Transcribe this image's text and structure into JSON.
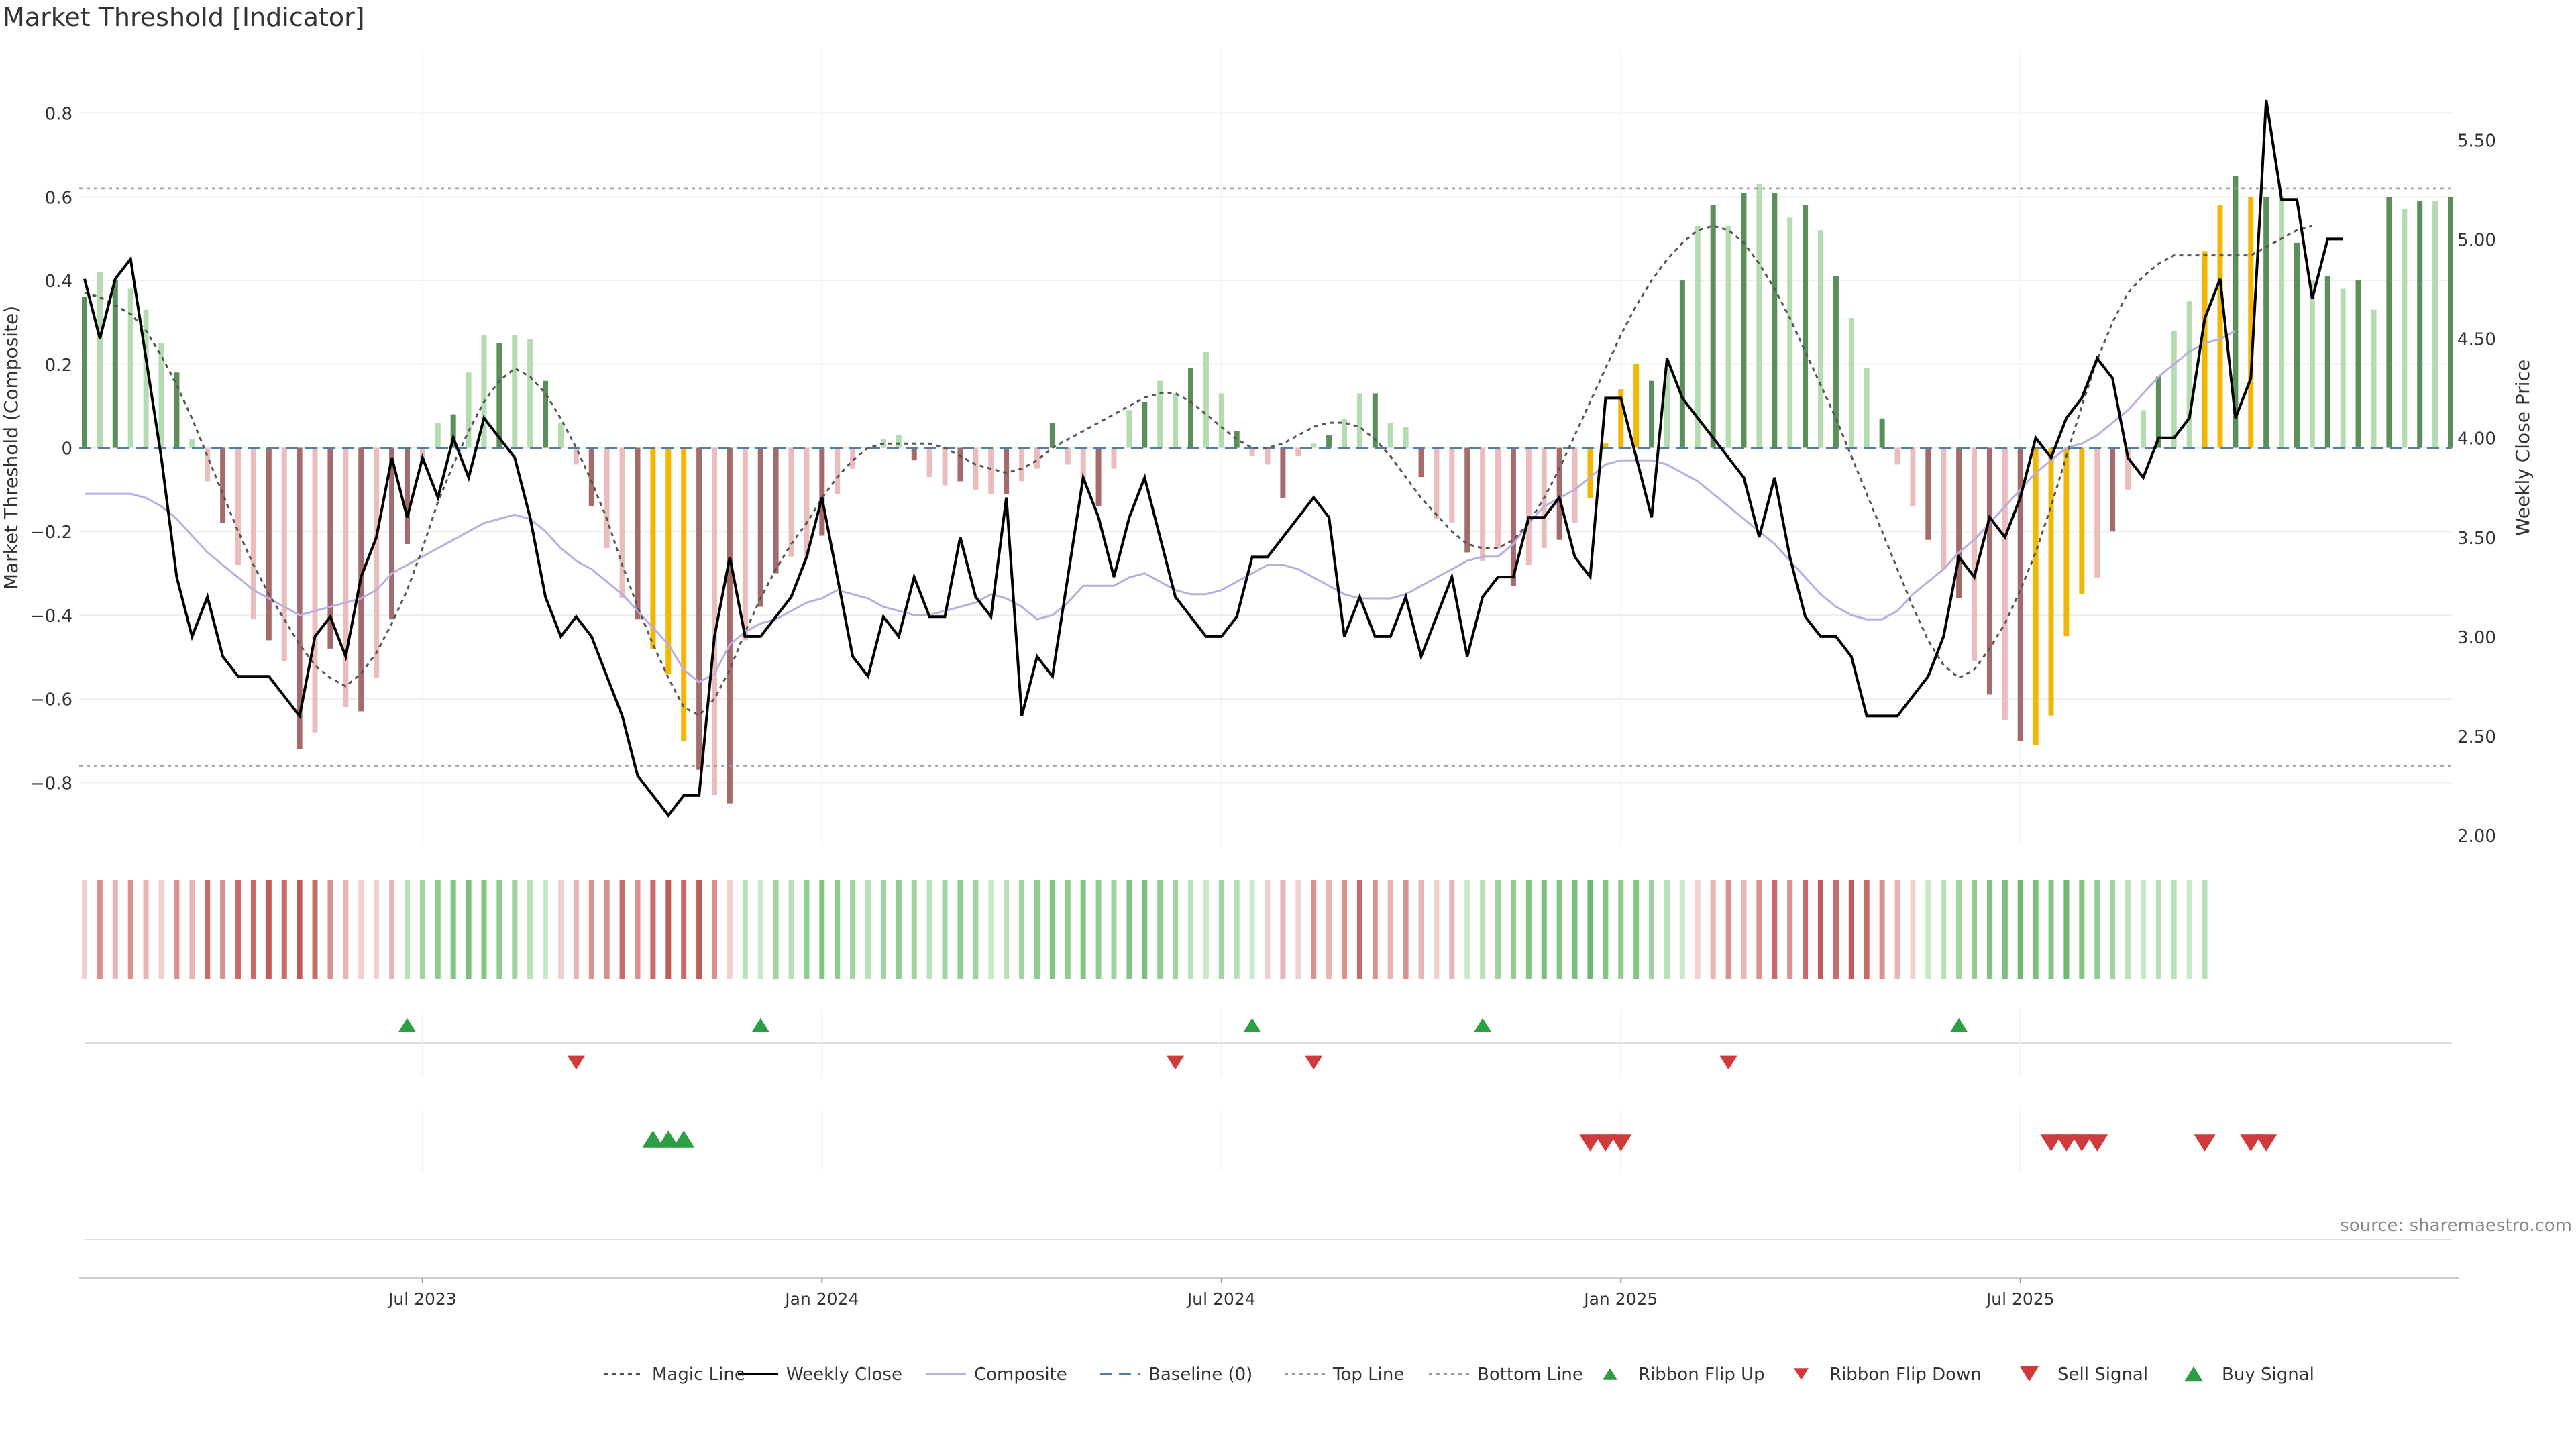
{
  "title": "Market Threshold [Indicator]",
  "source": "source: sharemaestro.com",
  "chart_data": {
    "type": "bar",
    "title": "Market Threshold [Indicator]",
    "ylabel": "Market Threshold (Composite)",
    "y2label": "Weekly Close Price",
    "ylim": [
      -0.95,
      0.95
    ],
    "y2lim": [
      1.95,
      5.95
    ],
    "yticks": [
      "0.8",
      "0.6",
      "0.4",
      "0.2",
      "0",
      "−0.2",
      "−0.4",
      "−0.6",
      "−0.8"
    ],
    "yticks_values": [
      0.8,
      0.6,
      0.4,
      0.2,
      0,
      -0.2,
      -0.4,
      -0.6,
      -0.8
    ],
    "y2ticks": [
      "5.50",
      "5.00",
      "4.50",
      "4.00",
      "3.50",
      "3.00",
      "2.50",
      "2.00"
    ],
    "y2ticks_values": [
      5.5,
      5.0,
      4.5,
      4.0,
      3.5,
      3.0,
      2.5,
      2.0
    ],
    "xticks": [
      "Jul 2023",
      "Jan 2024",
      "Jul 2024",
      "Jan 2025",
      "Jul 2025"
    ],
    "xticks_weeks": [
      22,
      48,
      74,
      100,
      126
    ],
    "top_line": 0.62,
    "bottom_line": -0.76,
    "colors": {
      "bull_strong": "#5a8f5a",
      "bull_light": "#b5dbb0",
      "bear_strong": "#a56b6b",
      "bear_light": "#ebbcbc",
      "extreme": "#f2b705",
      "composite": "#b8aee0",
      "magic": "#555555",
      "close": "#000000",
      "baseline": "#4f7fa6",
      "ribbon_green": "#6ab96f",
      "ribbon_red": "#c05a5a",
      "up_marker": "#2e9e44",
      "down_marker": "#d03a3a"
    },
    "composite_bars": [
      0.36,
      0.42,
      0.4,
      0.38,
      0.33,
      0.25,
      0.18,
      0.02,
      -0.08,
      -0.18,
      -0.28,
      -0.41,
      -0.46,
      -0.51,
      -0.72,
      -0.68,
      -0.48,
      -0.62,
      -0.63,
      -0.55,
      -0.41,
      -0.23,
      -0.04,
      0.06,
      0.08,
      0.18,
      0.27,
      0.25,
      0.27,
      0.26,
      0.16,
      0.06,
      -0.04,
      -0.14,
      -0.24,
      -0.36,
      -0.41,
      -0.48,
      -0.54,
      -0.7,
      -0.77,
      -0.83,
      -0.85,
      -0.46,
      -0.38,
      -0.3,
      -0.26,
      -0.26,
      -0.21,
      -0.11,
      -0.05,
      0.0,
      0.02,
      0.03,
      -0.03,
      -0.07,
      -0.09,
      -0.08,
      -0.1,
      -0.11,
      -0.11,
      -0.08,
      -0.05,
      0.06,
      -0.04,
      -0.09,
      -0.14,
      -0.05,
      0.09,
      0.11,
      0.16,
      0.13,
      0.19,
      0.23,
      0.13,
      0.04,
      -0.02,
      -0.04,
      -0.12,
      -0.02,
      0.01,
      0.03,
      0.07,
      0.13,
      0.13,
      0.06,
      0.05,
      -0.07,
      -0.17,
      -0.18,
      -0.25,
      -0.27,
      -0.24,
      -0.33,
      -0.28,
      -0.24,
      -0.22,
      -0.18,
      -0.12,
      0.01,
      0.14,
      0.2,
      0.16,
      0.19,
      0.4,
      0.53,
      0.58,
      0.53,
      0.61,
      0.63,
      0.61,
      0.55,
      0.58,
      0.52,
      0.41,
      0.31,
      0.19,
      0.07,
      -0.04,
      -0.14,
      -0.22,
      -0.29,
      -0.36,
      -0.51,
      -0.59,
      -0.65,
      -0.7,
      -0.71,
      -0.64,
      -0.45,
      -0.35,
      -0.31,
      -0.2,
      -0.1,
      0.09,
      0.17,
      0.28,
      0.35,
      0.47,
      0.58,
      0.65,
      0.6,
      0.6,
      0.6,
      0.49,
      0.4,
      0.41,
      0.38,
      0.4,
      0.33,
      0.6,
      0.57,
      0.59,
      0.59,
      0.6
    ],
    "extreme_weeks": [
      37,
      38,
      39,
      98,
      99,
      100,
      101,
      127,
      128,
      129,
      130,
      138,
      139,
      141
    ],
    "weekly_close": [
      4.8,
      4.5,
      4.8,
      4.9,
      4.4,
      3.9,
      3.3,
      3.0,
      3.2,
      2.9,
      2.8,
      2.8,
      2.8,
      2.7,
      2.6,
      3.0,
      3.1,
      2.9,
      3.3,
      3.5,
      3.9,
      3.6,
      3.9,
      3.7,
      4.0,
      3.8,
      4.1,
      4.0,
      3.9,
      3.6,
      3.2,
      3.0,
      3.1,
      3.0,
      2.8,
      2.6,
      2.3,
      2.2,
      2.1,
      2.2,
      2.2,
      3.0,
      3.4,
      3.0,
      3.0,
      3.1,
      3.2,
      3.4,
      3.7,
      3.3,
      2.9,
      2.8,
      3.1,
      3.0,
      3.3,
      3.1,
      3.1,
      3.5,
      3.2,
      3.1,
      3.7,
      2.6,
      2.9,
      2.8,
      3.3,
      3.8,
      3.6,
      3.3,
      3.6,
      3.8,
      3.5,
      3.2,
      3.1,
      3.0,
      3.0,
      3.1,
      3.4,
      3.4,
      3.5,
      3.6,
      3.7,
      3.6,
      3.0,
      3.2,
      3.0,
      3.0,
      3.2,
      2.9,
      3.1,
      3.3,
      2.9,
      3.2,
      3.3,
      3.3,
      3.6,
      3.6,
      3.7,
      3.4,
      3.3,
      4.2,
      4.2,
      3.9,
      3.6,
      4.4,
      4.2,
      4.1,
      4.0,
      3.9,
      3.8,
      3.5,
      3.8,
      3.4,
      3.1,
      3.0,
      3.0,
      2.9,
      2.6,
      2.6,
      2.6,
      2.7,
      2.8,
      3.0,
      3.4,
      3.3,
      3.6,
      3.5,
      3.7,
      4.0,
      3.9,
      4.1,
      4.2,
      4.4,
      4.3,
      3.9,
      3.8,
      4.0,
      4.0,
      4.1,
      4.6,
      4.8,
      4.1,
      4.3,
      5.7,
      5.2,
      5.2,
      4.7,
      5.0,
      5.0
    ],
    "magic_line": [
      0.37,
      0.36,
      0.34,
      0.32,
      0.28,
      0.22,
      0.15,
      0.07,
      -0.02,
      -0.11,
      -0.2,
      -0.28,
      -0.35,
      -0.41,
      -0.47,
      -0.52,
      -0.55,
      -0.57,
      -0.54,
      -0.49,
      -0.42,
      -0.34,
      -0.24,
      -0.13,
      -0.04,
      0.04,
      0.11,
      0.16,
      0.19,
      0.17,
      0.13,
      0.07,
      0.0,
      -0.08,
      -0.17,
      -0.28,
      -0.38,
      -0.47,
      -0.55,
      -0.62,
      -0.64,
      -0.6,
      -0.53,
      -0.44,
      -0.36,
      -0.29,
      -0.23,
      -0.18,
      -0.12,
      -0.07,
      -0.03,
      0.0,
      0.01,
      0.01,
      0.01,
      0.01,
      0.0,
      -0.02,
      -0.04,
      -0.05,
      -0.06,
      -0.05,
      -0.03,
      0.0,
      0.02,
      0.04,
      0.06,
      0.08,
      0.1,
      0.12,
      0.13,
      0.13,
      0.11,
      0.08,
      0.05,
      0.02,
      0.0,
      0.0,
      0.01,
      0.03,
      0.05,
      0.06,
      0.06,
      0.05,
      0.02,
      -0.02,
      -0.07,
      -0.12,
      -0.16,
      -0.2,
      -0.23,
      -0.24,
      -0.24,
      -0.22,
      -0.18,
      -0.12,
      -0.05,
      0.03,
      0.11,
      0.19,
      0.27,
      0.34,
      0.4,
      0.45,
      0.49,
      0.52,
      0.53,
      0.52,
      0.49,
      0.44,
      0.38,
      0.31,
      0.23,
      0.15,
      0.07,
      -0.02,
      -0.11,
      -0.2,
      -0.29,
      -0.38,
      -0.46,
      -0.52,
      -0.55,
      -0.53,
      -0.48,
      -0.42,
      -0.34,
      -0.25,
      -0.14,
      -0.02,
      0.1,
      0.21,
      0.3,
      0.37,
      0.41,
      0.44,
      0.46,
      0.46,
      0.46,
      0.46,
      0.46,
      0.46,
      0.48,
      0.5,
      0.52,
      0.53
    ],
    "composite_line": [
      -0.11,
      -0.11,
      -0.11,
      -0.11,
      -0.12,
      -0.14,
      -0.17,
      -0.21,
      -0.25,
      -0.28,
      -0.31,
      -0.34,
      -0.36,
      -0.38,
      -0.4,
      -0.39,
      -0.38,
      -0.37,
      -0.36,
      -0.34,
      -0.3,
      -0.28,
      -0.26,
      -0.24,
      -0.22,
      -0.2,
      -0.18,
      -0.17,
      -0.16,
      -0.17,
      -0.2,
      -0.24,
      -0.27,
      -0.29,
      -0.32,
      -0.35,
      -0.39,
      -0.43,
      -0.47,
      -0.53,
      -0.56,
      -0.54,
      -0.47,
      -0.44,
      -0.42,
      -0.41,
      -0.39,
      -0.37,
      -0.36,
      -0.34,
      -0.35,
      -0.36,
      -0.38,
      -0.39,
      -0.4,
      -0.4,
      -0.39,
      -0.38,
      -0.37,
      -0.35,
      -0.36,
      -0.38,
      -0.41,
      -0.4,
      -0.37,
      -0.33,
      -0.33,
      -0.33,
      -0.31,
      -0.3,
      -0.32,
      -0.34,
      -0.35,
      -0.35,
      -0.34,
      -0.32,
      -0.3,
      -0.28,
      -0.28,
      -0.29,
      -0.31,
      -0.33,
      -0.35,
      -0.36,
      -0.36,
      -0.36,
      -0.35,
      -0.33,
      -0.31,
      -0.29,
      -0.27,
      -0.26,
      -0.26,
      -0.23,
      -0.18,
      -0.14,
      -0.12,
      -0.1,
      -0.07,
      -0.04,
      -0.03,
      -0.03,
      -0.03,
      -0.04,
      -0.06,
      -0.08,
      -0.11,
      -0.14,
      -0.17,
      -0.2,
      -0.23,
      -0.27,
      -0.31,
      -0.35,
      -0.38,
      -0.4,
      -0.41,
      -0.41,
      -0.39,
      -0.35,
      -0.32,
      -0.29,
      -0.25,
      -0.22,
      -0.18,
      -0.14,
      -0.1,
      -0.06,
      -0.03,
      0.0,
      0.01,
      0.03,
      0.06,
      0.09,
      0.13,
      0.17,
      0.2,
      0.23,
      0.25,
      0.26,
      0.28
    ],
    "ribbon_colors": [
      "#f3d0d0",
      "#d99090",
      "#e8b5b5",
      "#d99090",
      "#e8b5b5",
      "#f3d0d0",
      "#d99090",
      "#e8b5b5",
      "#c86a6a",
      "#d99090",
      "#c86a6a",
      "#c86a6a",
      "#be5b5b",
      "#c86a6a",
      "#be5b5b",
      "#c86a6a",
      "#d99090",
      "#e8b5b5",
      "#f3d0d0",
      "#f3d0d0",
      "#e8b5b5",
      "#b8e0b8",
      "#9fd39f",
      "#8fcc8f",
      "#80c580",
      "#7cbf7c",
      "#80c580",
      "#8fcc8f",
      "#9fd39f",
      "#b8e0b8",
      "#c9e8c9",
      "#f3d0d0",
      "#e8b5b5",
      "#d99090",
      "#d99090",
      "#c86a6a",
      "#d99090",
      "#c86a6a",
      "#be5b5b",
      "#c86a6a",
      "#be5b5b",
      "#d99090",
      "#f3d0d0",
      "#b8e0b8",
      "#c9e8c9",
      "#9fd39f",
      "#b8e0b8",
      "#8fcc8f",
      "#80c580",
      "#8fcc8f",
      "#9fd39f",
      "#b8e0b8",
      "#9fd39f",
      "#8fcc8f",
      "#9fd39f",
      "#b8e0b8",
      "#9fd39f",
      "#8fcc8f",
      "#9fd39f",
      "#c9e8c9",
      "#b8e0b8",
      "#9fd39f",
      "#8fcc8f",
      "#80c580",
      "#8fcc8f",
      "#80c580",
      "#8fcc8f",
      "#9fd39f",
      "#80c580",
      "#7cbf7c",
      "#8fcc8f",
      "#9fd39f",
      "#b8e0b8",
      "#c9e8c9",
      "#9fd39f",
      "#b8e0b8",
      "#c9e8c9",
      "#f3d0d0",
      "#e8b5b5",
      "#f3d0d0",
      "#d99090",
      "#e8b5b5",
      "#d99090",
      "#c86a6a",
      "#d99090",
      "#e8b5b5",
      "#d99090",
      "#e8b5b5",
      "#f3d0d0",
      "#e8b5b5",
      "#c9e8c9",
      "#b8e0b8",
      "#9fd39f",
      "#8fcc8f",
      "#80c580",
      "#7cbf7c",
      "#80c580",
      "#7cbf7c",
      "#6fb86f",
      "#80c580",
      "#8fcc8f",
      "#80c580",
      "#9fd39f",
      "#b8e0b8",
      "#c9e8c9",
      "#f3d0d0",
      "#e8b5b5",
      "#d99090",
      "#e8b5b5",
      "#d99090",
      "#c86a6a",
      "#d99090",
      "#c86a6a",
      "#be5b5b",
      "#c86a6a",
      "#be5b5b",
      "#c86a6a",
      "#d99090",
      "#e8b5b5",
      "#f3d0d0",
      "#c9e8c9",
      "#b8e0b8",
      "#9fd39f",
      "#8fcc8f",
      "#80c580",
      "#7cbf7c",
      "#6fb86f",
      "#7cbf7c",
      "#80c580",
      "#6fb86f",
      "#80c580",
      "#8fcc8f",
      "#9fd39f",
      "#b8e0b8",
      "#c9e8c9",
      "#b8e0b8",
      "#b8e0b8",
      "#c9e8c9",
      "#b8e0b8"
    ],
    "ribbon_flip_up_weeks": [
      21,
      44,
      76,
      91,
      122
    ],
    "ribbon_flip_down_weeks": [
      32,
      71,
      80,
      107
    ],
    "buy_signal_weeks": [
      37,
      38,
      39
    ],
    "sell_signal_weeks": [
      98,
      99,
      100,
      128,
      129,
      130,
      131,
      138,
      141,
      142
    ],
    "legend": [
      "Magic Line",
      "Weekly Close",
      "Composite",
      "Baseline (0)",
      "Top Line",
      "Bottom Line",
      "Ribbon Flip Up",
      "Ribbon Flip Down",
      "Sell Signal",
      "Buy Signal"
    ],
    "legend_position": "bottom-center"
  }
}
